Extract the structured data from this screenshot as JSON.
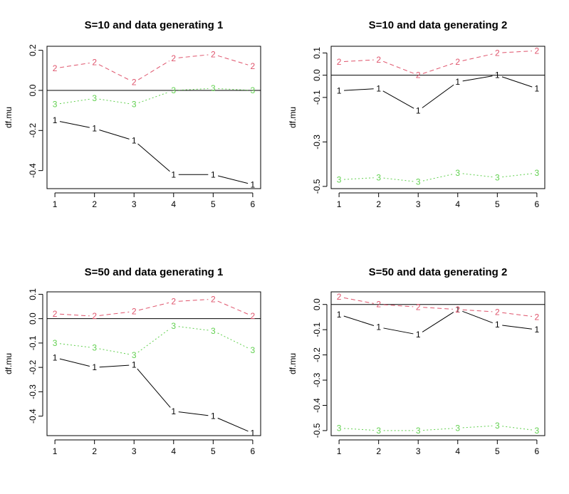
{
  "chart_data": [
    {
      "type": "line",
      "title": "S=10 and data generating 1",
      "xlabel": "",
      "ylabel": "df.mu",
      "x": [
        1,
        2,
        3,
        4,
        5,
        6
      ],
      "x_ticks": [
        "1",
        "2",
        "3",
        "4",
        "5",
        "6"
      ],
      "ylim": [
        -0.49,
        0.22
      ],
      "y_ticks": [
        -0.4,
        -0.2,
        0.0,
        0.2
      ],
      "y_tick_labels": [
        "-0.4",
        "-0.2",
        "0.0",
        "0.2"
      ],
      "reference_line": 0,
      "series": [
        {
          "marker": "1",
          "color": "#000000",
          "dash": "solid",
          "values": [
            -0.15,
            -0.19,
            -0.25,
            -0.42,
            -0.42,
            -0.47
          ]
        },
        {
          "marker": "2",
          "color": "#df536b",
          "dash": "dashed",
          "values": [
            0.11,
            0.14,
            0.04,
            0.16,
            0.18,
            0.12
          ]
        },
        {
          "marker": "3",
          "color": "#61d04f",
          "dash": "dotted",
          "values": [
            -0.07,
            -0.04,
            -0.07,
            0.0,
            0.01,
            0.0
          ]
        }
      ]
    },
    {
      "type": "line",
      "title": "S=10 and data generating 2",
      "xlabel": "",
      "ylabel": "df.mu",
      "x": [
        1,
        2,
        3,
        4,
        5,
        6
      ],
      "x_ticks": [
        "1",
        "2",
        "3",
        "4",
        "5",
        "6"
      ],
      "ylim": [
        -0.51,
        0.13
      ],
      "y_ticks": [
        -0.5,
        -0.3,
        -0.1,
        0.0,
        0.1
      ],
      "y_tick_labels": [
        "-0.5",
        "-0.3",
        "-0.1",
        "0.0",
        "0.1"
      ],
      "reference_line": 0,
      "series": [
        {
          "marker": "1",
          "color": "#000000",
          "dash": "solid",
          "values": [
            -0.07,
            -0.06,
            -0.16,
            -0.03,
            0.0,
            -0.06
          ]
        },
        {
          "marker": "2",
          "color": "#df536b",
          "dash": "dashed",
          "values": [
            0.06,
            0.07,
            0.0,
            0.06,
            0.1,
            0.11
          ]
        },
        {
          "marker": "3",
          "color": "#61d04f",
          "dash": "dotted",
          "values": [
            -0.47,
            -0.46,
            -0.48,
            -0.44,
            -0.46,
            -0.44
          ]
        }
      ]
    },
    {
      "type": "line",
      "title": "S=50 and data generating 1",
      "xlabel": "",
      "ylabel": "df.mu",
      "x": [
        1,
        2,
        3,
        4,
        5,
        6
      ],
      "x_ticks": [
        "1",
        "2",
        "3",
        "4",
        "5",
        "6"
      ],
      "ylim": [
        -0.48,
        0.11
      ],
      "y_ticks": [
        -0.4,
        -0.3,
        -0.2,
        -0.1,
        0.0,
        0.1
      ],
      "y_tick_labels": [
        "-0.4",
        "-0.3",
        "-0.2",
        "-0.1",
        "0.0",
        "0.1"
      ],
      "reference_line": 0,
      "series": [
        {
          "marker": "1",
          "color": "#000000",
          "dash": "solid",
          "values": [
            -0.16,
            -0.2,
            -0.19,
            -0.38,
            -0.4,
            -0.47
          ]
        },
        {
          "marker": "2",
          "color": "#df536b",
          "dash": "dashed",
          "values": [
            0.02,
            0.01,
            0.03,
            0.07,
            0.08,
            0.01
          ]
        },
        {
          "marker": "3",
          "color": "#61d04f",
          "dash": "dotted",
          "values": [
            -0.1,
            -0.12,
            -0.15,
            -0.03,
            -0.05,
            -0.13
          ]
        }
      ]
    },
    {
      "type": "line",
      "title": "S=50 and data generating 2",
      "xlabel": "",
      "ylabel": "df.mu",
      "x": [
        1,
        2,
        3,
        4,
        5,
        6
      ],
      "x_ticks": [
        "1",
        "2",
        "3",
        "4",
        "5",
        "6"
      ],
      "ylim": [
        -0.52,
        0.05
      ],
      "y_ticks": [
        -0.5,
        -0.4,
        -0.3,
        -0.2,
        -0.1,
        0.0
      ],
      "y_tick_labels": [
        "-0.5",
        "-0.4",
        "-0.3",
        "-0.2",
        "-0.1",
        "0.0"
      ],
      "reference_line": 0,
      "series": [
        {
          "marker": "1",
          "color": "#000000",
          "dash": "solid",
          "values": [
            -0.04,
            -0.09,
            -0.12,
            -0.02,
            -0.08,
            -0.1
          ]
        },
        {
          "marker": "2",
          "color": "#df536b",
          "dash": "dashed",
          "values": [
            0.03,
            0.0,
            -0.01,
            -0.02,
            -0.03,
            -0.05
          ]
        },
        {
          "marker": "3",
          "color": "#61d04f",
          "dash": "dotted",
          "values": [
            -0.49,
            -0.5,
            -0.5,
            -0.49,
            -0.48,
            -0.5
          ]
        }
      ]
    }
  ]
}
